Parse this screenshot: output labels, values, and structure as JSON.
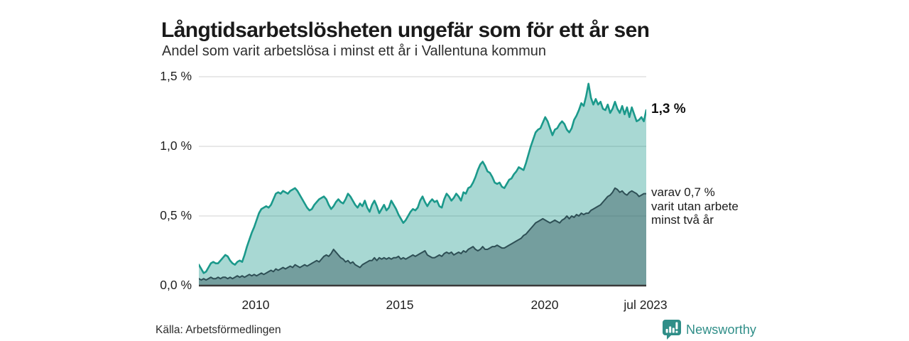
{
  "header": {
    "title": "Långtidsarbetslösheten ungefär som för ett år sen",
    "subtitle": "Andel som varit arbetslösa i minst ett år i Vallentuna kommun"
  },
  "colors": {
    "accent_teal": "#1b998b",
    "teal_fill": "rgba(27,153,139,0.38)",
    "dark_line": "#2e4f55",
    "dark_fill": "rgba(46,79,85,0.42)",
    "gridline": "#d9d9d9",
    "axis_line": "#3a3a3a",
    "brand_teal": "#2f8e88",
    "text": "#1a1a1a"
  },
  "chart_data": {
    "type": "area",
    "title": "Långtidsarbetslösheten ungefär som för ett år sen",
    "subtitle": "Andel som varit arbetslösa i minst ett år i Vallentuna kommun",
    "x_start": "2008-01",
    "x_end": "2023-07",
    "x_tick_labels": [
      "2010",
      "2015",
      "2020",
      "jul 2023"
    ],
    "y_tick_labels": [
      "0,0 %",
      "0,5 %",
      "1,0 %",
      "1,5 %"
    ],
    "y_gridlines": [
      0.5,
      1.0,
      1.5
    ],
    "ylim": [
      0,
      1.5
    ],
    "grid": "horizontal",
    "unit": "%",
    "series": [
      {
        "name": "Andel arbetslösa minst ett år",
        "latest_label": "1,3 %",
        "latest_value": 1.3,
        "values": [
          0.15,
          0.12,
          0.09,
          0.1,
          0.13,
          0.16,
          0.17,
          0.16,
          0.16,
          0.18,
          0.2,
          0.22,
          0.21,
          0.18,
          0.16,
          0.15,
          0.17,
          0.18,
          0.17,
          0.22,
          0.28,
          0.33,
          0.38,
          0.42,
          0.47,
          0.52,
          0.55,
          0.56,
          0.57,
          0.56,
          0.58,
          0.62,
          0.66,
          0.67,
          0.66,
          0.68,
          0.67,
          0.66,
          0.68,
          0.69,
          0.7,
          0.68,
          0.65,
          0.62,
          0.59,
          0.56,
          0.54,
          0.55,
          0.58,
          0.6,
          0.62,
          0.63,
          0.64,
          0.62,
          0.58,
          0.55,
          0.57,
          0.6,
          0.62,
          0.6,
          0.59,
          0.62,
          0.66,
          0.64,
          0.61,
          0.58,
          0.56,
          0.59,
          0.57,
          0.61,
          0.56,
          0.53,
          0.58,
          0.61,
          0.57,
          0.52,
          0.55,
          0.58,
          0.54,
          0.56,
          0.61,
          0.58,
          0.55,
          0.51,
          0.48,
          0.45,
          0.47,
          0.5,
          0.53,
          0.55,
          0.54,
          0.56,
          0.61,
          0.64,
          0.6,
          0.57,
          0.6,
          0.62,
          0.6,
          0.61,
          0.57,
          0.56,
          0.62,
          0.66,
          0.64,
          0.61,
          0.63,
          0.66,
          0.64,
          0.61,
          0.67,
          0.66,
          0.7,
          0.71,
          0.74,
          0.78,
          0.83,
          0.87,
          0.89,
          0.86,
          0.82,
          0.81,
          0.78,
          0.74,
          0.73,
          0.74,
          0.71,
          0.7,
          0.73,
          0.76,
          0.77,
          0.8,
          0.82,
          0.85,
          0.84,
          0.83,
          0.88,
          0.94,
          1.0,
          1.05,
          1.1,
          1.12,
          1.13,
          1.17,
          1.21,
          1.18,
          1.13,
          1.08,
          1.12,
          1.13,
          1.16,
          1.18,
          1.16,
          1.12,
          1.1,
          1.13,
          1.19,
          1.22,
          1.26,
          1.31,
          1.29,
          1.36,
          1.45,
          1.35,
          1.3,
          1.34,
          1.3,
          1.32,
          1.27,
          1.26,
          1.3,
          1.24,
          1.27,
          1.32,
          1.27,
          1.24,
          1.29,
          1.23,
          1.28,
          1.21,
          1.28,
          1.23,
          1.18,
          1.19,
          1.21,
          1.18,
          1.26
        ]
      },
      {
        "name": "varav utan arbete minst två år",
        "latest_label": "varav 0,7 %",
        "latest_value": 0.7,
        "values": [
          0.05,
          0.04,
          0.05,
          0.04,
          0.05,
          0.06,
          0.05,
          0.05,
          0.06,
          0.05,
          0.06,
          0.06,
          0.05,
          0.06,
          0.05,
          0.06,
          0.07,
          0.06,
          0.07,
          0.06,
          0.07,
          0.08,
          0.07,
          0.08,
          0.07,
          0.08,
          0.09,
          0.08,
          0.09,
          0.1,
          0.11,
          0.1,
          0.12,
          0.11,
          0.12,
          0.13,
          0.12,
          0.13,
          0.14,
          0.13,
          0.15,
          0.14,
          0.13,
          0.14,
          0.15,
          0.14,
          0.15,
          0.16,
          0.17,
          0.18,
          0.17,
          0.19,
          0.21,
          0.22,
          0.21,
          0.23,
          0.26,
          0.24,
          0.22,
          0.2,
          0.19,
          0.17,
          0.18,
          0.16,
          0.17,
          0.15,
          0.14,
          0.13,
          0.15,
          0.16,
          0.17,
          0.18,
          0.18,
          0.2,
          0.18,
          0.2,
          0.19,
          0.2,
          0.19,
          0.2,
          0.19,
          0.2,
          0.2,
          0.21,
          0.19,
          0.2,
          0.19,
          0.2,
          0.21,
          0.22,
          0.21,
          0.22,
          0.23,
          0.24,
          0.25,
          0.22,
          0.21,
          0.2,
          0.2,
          0.21,
          0.22,
          0.21,
          0.23,
          0.24,
          0.23,
          0.24,
          0.22,
          0.23,
          0.24,
          0.23,
          0.25,
          0.24,
          0.26,
          0.27,
          0.28,
          0.26,
          0.25,
          0.26,
          0.28,
          0.26,
          0.26,
          0.27,
          0.28,
          0.28,
          0.29,
          0.28,
          0.27,
          0.27,
          0.28,
          0.29,
          0.3,
          0.31,
          0.32,
          0.33,
          0.34,
          0.36,
          0.37,
          0.39,
          0.41,
          0.43,
          0.45,
          0.46,
          0.47,
          0.48,
          0.47,
          0.46,
          0.45,
          0.46,
          0.47,
          0.46,
          0.45,
          0.47,
          0.48,
          0.5,
          0.48,
          0.5,
          0.49,
          0.51,
          0.5,
          0.52,
          0.51,
          0.52,
          0.52,
          0.54,
          0.55,
          0.56,
          0.57,
          0.58,
          0.6,
          0.62,
          0.64,
          0.65,
          0.67,
          0.7,
          0.69,
          0.67,
          0.68,
          0.66,
          0.65,
          0.67,
          0.68,
          0.67,
          0.66,
          0.64,
          0.65,
          0.66,
          0.66
        ]
      }
    ],
    "annotations": {
      "latest_total": "1,3 %",
      "latest_two_year": "varav 0,7 %\nvarit utan arbete\nminst två år"
    },
    "legend_position": "right-annotations"
  },
  "footer": {
    "source": "Källa: Arbetsförmedlingen",
    "brand": "Newsworthy"
  }
}
